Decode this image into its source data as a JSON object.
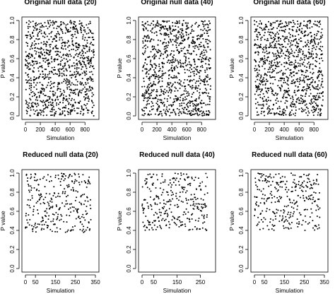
{
  "chart_data": [
    {
      "type": "scatter",
      "title": "Original null data (20)",
      "xlabel": "Simulation",
      "ylabel": "P value",
      "x_ticks": [
        0,
        200,
        400,
        600,
        800
      ],
      "y_ticks": [
        0.0,
        0.2,
        0.4,
        0.6,
        0.8,
        1.0
      ],
      "x_tick_labels": [
        "0",
        "200",
        "400",
        "600",
        "800"
      ],
      "y_tick_labels": [
        "0.0",
        "0.2",
        "0.4",
        "0.6",
        "0.8",
        "1.0"
      ],
      "xlim": [
        0,
        940
      ],
      "ylim": [
        0,
        1
      ],
      "n_points": 1000,
      "p_min": 0.0,
      "p_max": 1.0,
      "seed": 11
    },
    {
      "type": "scatter",
      "title": "Original null data (40)",
      "xlabel": "Simulation",
      "ylabel": "P value",
      "x_ticks": [
        0,
        200,
        400,
        600,
        800
      ],
      "y_ticks": [
        0.0,
        0.2,
        0.4,
        0.6,
        0.8,
        1.0
      ],
      "x_tick_labels": [
        "0",
        "200",
        "400",
        "600",
        "800"
      ],
      "y_tick_labels": [
        "0.0",
        "0.2",
        "0.4",
        "0.6",
        "0.8",
        "1.0"
      ],
      "xlim": [
        0,
        940
      ],
      "ylim": [
        0,
        1
      ],
      "n_points": 1000,
      "p_min": 0.0,
      "p_max": 1.0,
      "seed": 23
    },
    {
      "type": "scatter",
      "title": "Original null data (60)",
      "xlabel": "Simulation",
      "ylabel": "P value",
      "x_ticks": [
        0,
        200,
        400,
        600,
        800
      ],
      "y_ticks": [
        0.0,
        0.2,
        0.4,
        0.6,
        0.8,
        1.0
      ],
      "x_tick_labels": [
        "0",
        "200",
        "400",
        "600",
        "800"
      ],
      "y_tick_labels": [
        "0.0",
        "0.2",
        "0.4",
        "0.6",
        "0.8",
        "1.0"
      ],
      "xlim": [
        0,
        940
      ],
      "ylim": [
        0,
        1
      ],
      "n_points": 1000,
      "p_min": 0.0,
      "p_max": 1.0,
      "seed": 37
    },
    {
      "type": "scatter",
      "title": "Reduced null data (20)",
      "xlabel": "Simulation",
      "ylabel": "P value",
      "x_ticks": [
        0,
        50,
        150,
        250,
        350
      ],
      "y_ticks": [
        0.0,
        0.2,
        0.4,
        0.6,
        0.8,
        1.0
      ],
      "x_tick_labels": [
        "0",
        "50",
        "150",
        "250",
        "350"
      ],
      "y_tick_labels": [
        "0.0",
        "0.2",
        "0.4",
        "0.6",
        "0.8",
        "1.0"
      ],
      "xlim": [
        0,
        350
      ],
      "ylim": [
        0,
        1
      ],
      "n_points": 300,
      "p_min": 0.38,
      "p_max": 1.0,
      "seed": 51
    },
    {
      "type": "scatter",
      "title": "Reduced null data (40)",
      "xlabel": "Simulation",
      "ylabel": "P value",
      "x_ticks": [
        0,
        50,
        150,
        250
      ],
      "y_ticks": [
        0.0,
        0.2,
        0.4,
        0.6,
        0.8,
        1.0
      ],
      "x_tick_labels": [
        "0",
        "50",
        "150",
        "250"
      ],
      "y_tick_labels": [
        "0.0",
        "0.2",
        "0.4",
        "0.6",
        "0.8",
        "1.0"
      ],
      "xlim": [
        0,
        300
      ],
      "ylim": [
        0,
        1
      ],
      "n_points": 300,
      "p_min": 0.4,
      "p_max": 1.0,
      "seed": 67
    },
    {
      "type": "scatter",
      "title": "Reduced null data (60)",
      "xlabel": "Simulation",
      "ylabel": "P value",
      "x_ticks": [
        0,
        50,
        150,
        250,
        350
      ],
      "y_ticks": [
        0.0,
        0.2,
        0.4,
        0.6,
        0.8,
        1.0
      ],
      "x_tick_labels": [
        "0",
        "50",
        "150",
        "250",
        "350"
      ],
      "y_tick_labels": [
        "0.0",
        "0.2",
        "0.4",
        "0.6",
        "0.8",
        "1.0"
      ],
      "xlim": [
        0,
        350
      ],
      "ylim": [
        0,
        1
      ],
      "n_points": 300,
      "p_min": 0.4,
      "p_max": 1.0,
      "seed": 83
    }
  ]
}
